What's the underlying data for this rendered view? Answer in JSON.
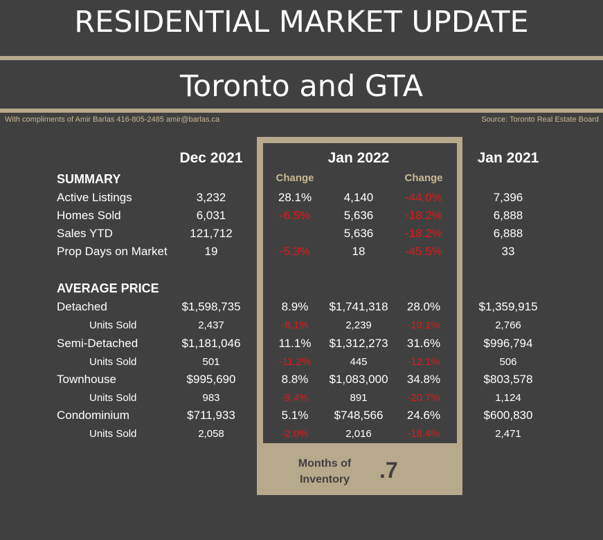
{
  "header": {
    "title": "RESIDENTIAL MARKET UPDATE",
    "subtitle": "Toronto and GTA",
    "credit": "With compliments of Amir Barlas 416-805-2485 amir@barlas.ca",
    "source": "Source: Toronto Real Estate Board"
  },
  "columns": {
    "dec2021": "Dec 2021",
    "jan2022": "Jan 2022",
    "jan2021": "Jan 2021",
    "change": "Change"
  },
  "sections": {
    "summary": "SUMMARY",
    "average_price": "AVERAGE PRICE"
  },
  "rows": [
    {
      "label": "Active Listings",
      "dec": "3,232",
      "chg_mom": "28.1%",
      "chg_mom_neg": false,
      "jan22": "4,140",
      "chg_yoy": "-44.0%",
      "chg_yoy_neg": true,
      "jan21": "7,396"
    },
    {
      "label": "Homes Sold",
      "dec": "6,031",
      "chg_mom": "-6.5%",
      "chg_mom_neg": true,
      "jan22": "5,636",
      "chg_yoy": "-18.2%",
      "chg_yoy_neg": true,
      "jan21": "6,888"
    },
    {
      "label": "Sales YTD",
      "dec": "121,712",
      "chg_mom": "",
      "chg_mom_neg": false,
      "jan22": "5,636",
      "chg_yoy": "-18.2%",
      "chg_yoy_neg": true,
      "jan21": "6,888"
    },
    {
      "label": "Prop Days on Market",
      "dec": "19",
      "chg_mom": "-5.3%",
      "chg_mom_neg": true,
      "jan22": "18",
      "chg_yoy": "-45.5%",
      "chg_yoy_neg": true,
      "jan21": "33"
    },
    {
      "label": "Detached",
      "dec": "$1,598,735",
      "chg_mom": "8.9%",
      "chg_mom_neg": false,
      "jan22": "$1,741,318",
      "chg_yoy": "28.0%",
      "chg_yoy_neg": false,
      "jan21": "$1,359,915"
    },
    {
      "label": "Units Sold",
      "dec": "2,437",
      "chg_mom": "-8.1%",
      "chg_mom_neg": true,
      "jan22": "2,239",
      "chg_yoy": "-19.1%",
      "chg_yoy_neg": true,
      "jan21": "2,766"
    },
    {
      "label": "Semi-Detached",
      "dec": "$1,181,046",
      "chg_mom": "11.1%",
      "chg_mom_neg": false,
      "jan22": "$1,312,273",
      "chg_yoy": "31.6%",
      "chg_yoy_neg": false,
      "jan21": "$996,794"
    },
    {
      "label": "Units Sold",
      "dec": "501",
      "chg_mom": "-11.2%",
      "chg_mom_neg": true,
      "jan22": "445",
      "chg_yoy": "-12.1%",
      "chg_yoy_neg": true,
      "jan21": "506"
    },
    {
      "label": "Townhouse",
      "dec": "$995,690",
      "chg_mom": "8.8%",
      "chg_mom_neg": false,
      "jan22": "$1,083,000",
      "chg_yoy": "34.8%",
      "chg_yoy_neg": false,
      "jan21": "$803,578"
    },
    {
      "label": "Units Sold",
      "dec": "983",
      "chg_mom": "-9.4%",
      "chg_mom_neg": true,
      "jan22": "891",
      "chg_yoy": "-20.7%",
      "chg_yoy_neg": true,
      "jan21": "1,124"
    },
    {
      "label": "Condominium",
      "dec": "$711,933",
      "chg_mom": "5.1%",
      "chg_mom_neg": false,
      "jan22": "$748,566",
      "chg_yoy": "24.6%",
      "chg_yoy_neg": false,
      "jan21": "$600,830"
    },
    {
      "label": "Units Sold",
      "dec": "2,058",
      "chg_mom": "-2.0%",
      "chg_mom_neg": true,
      "jan22": "2,016",
      "chg_yoy": "-18.4%",
      "chg_yoy_neg": true,
      "jan21": "2,471"
    }
  ],
  "inventory": {
    "label": "Months of Inventory",
    "value": ".7"
  },
  "colors": {
    "background": "#404040",
    "accent": "#b7a98b",
    "negative": "#e01818"
  }
}
